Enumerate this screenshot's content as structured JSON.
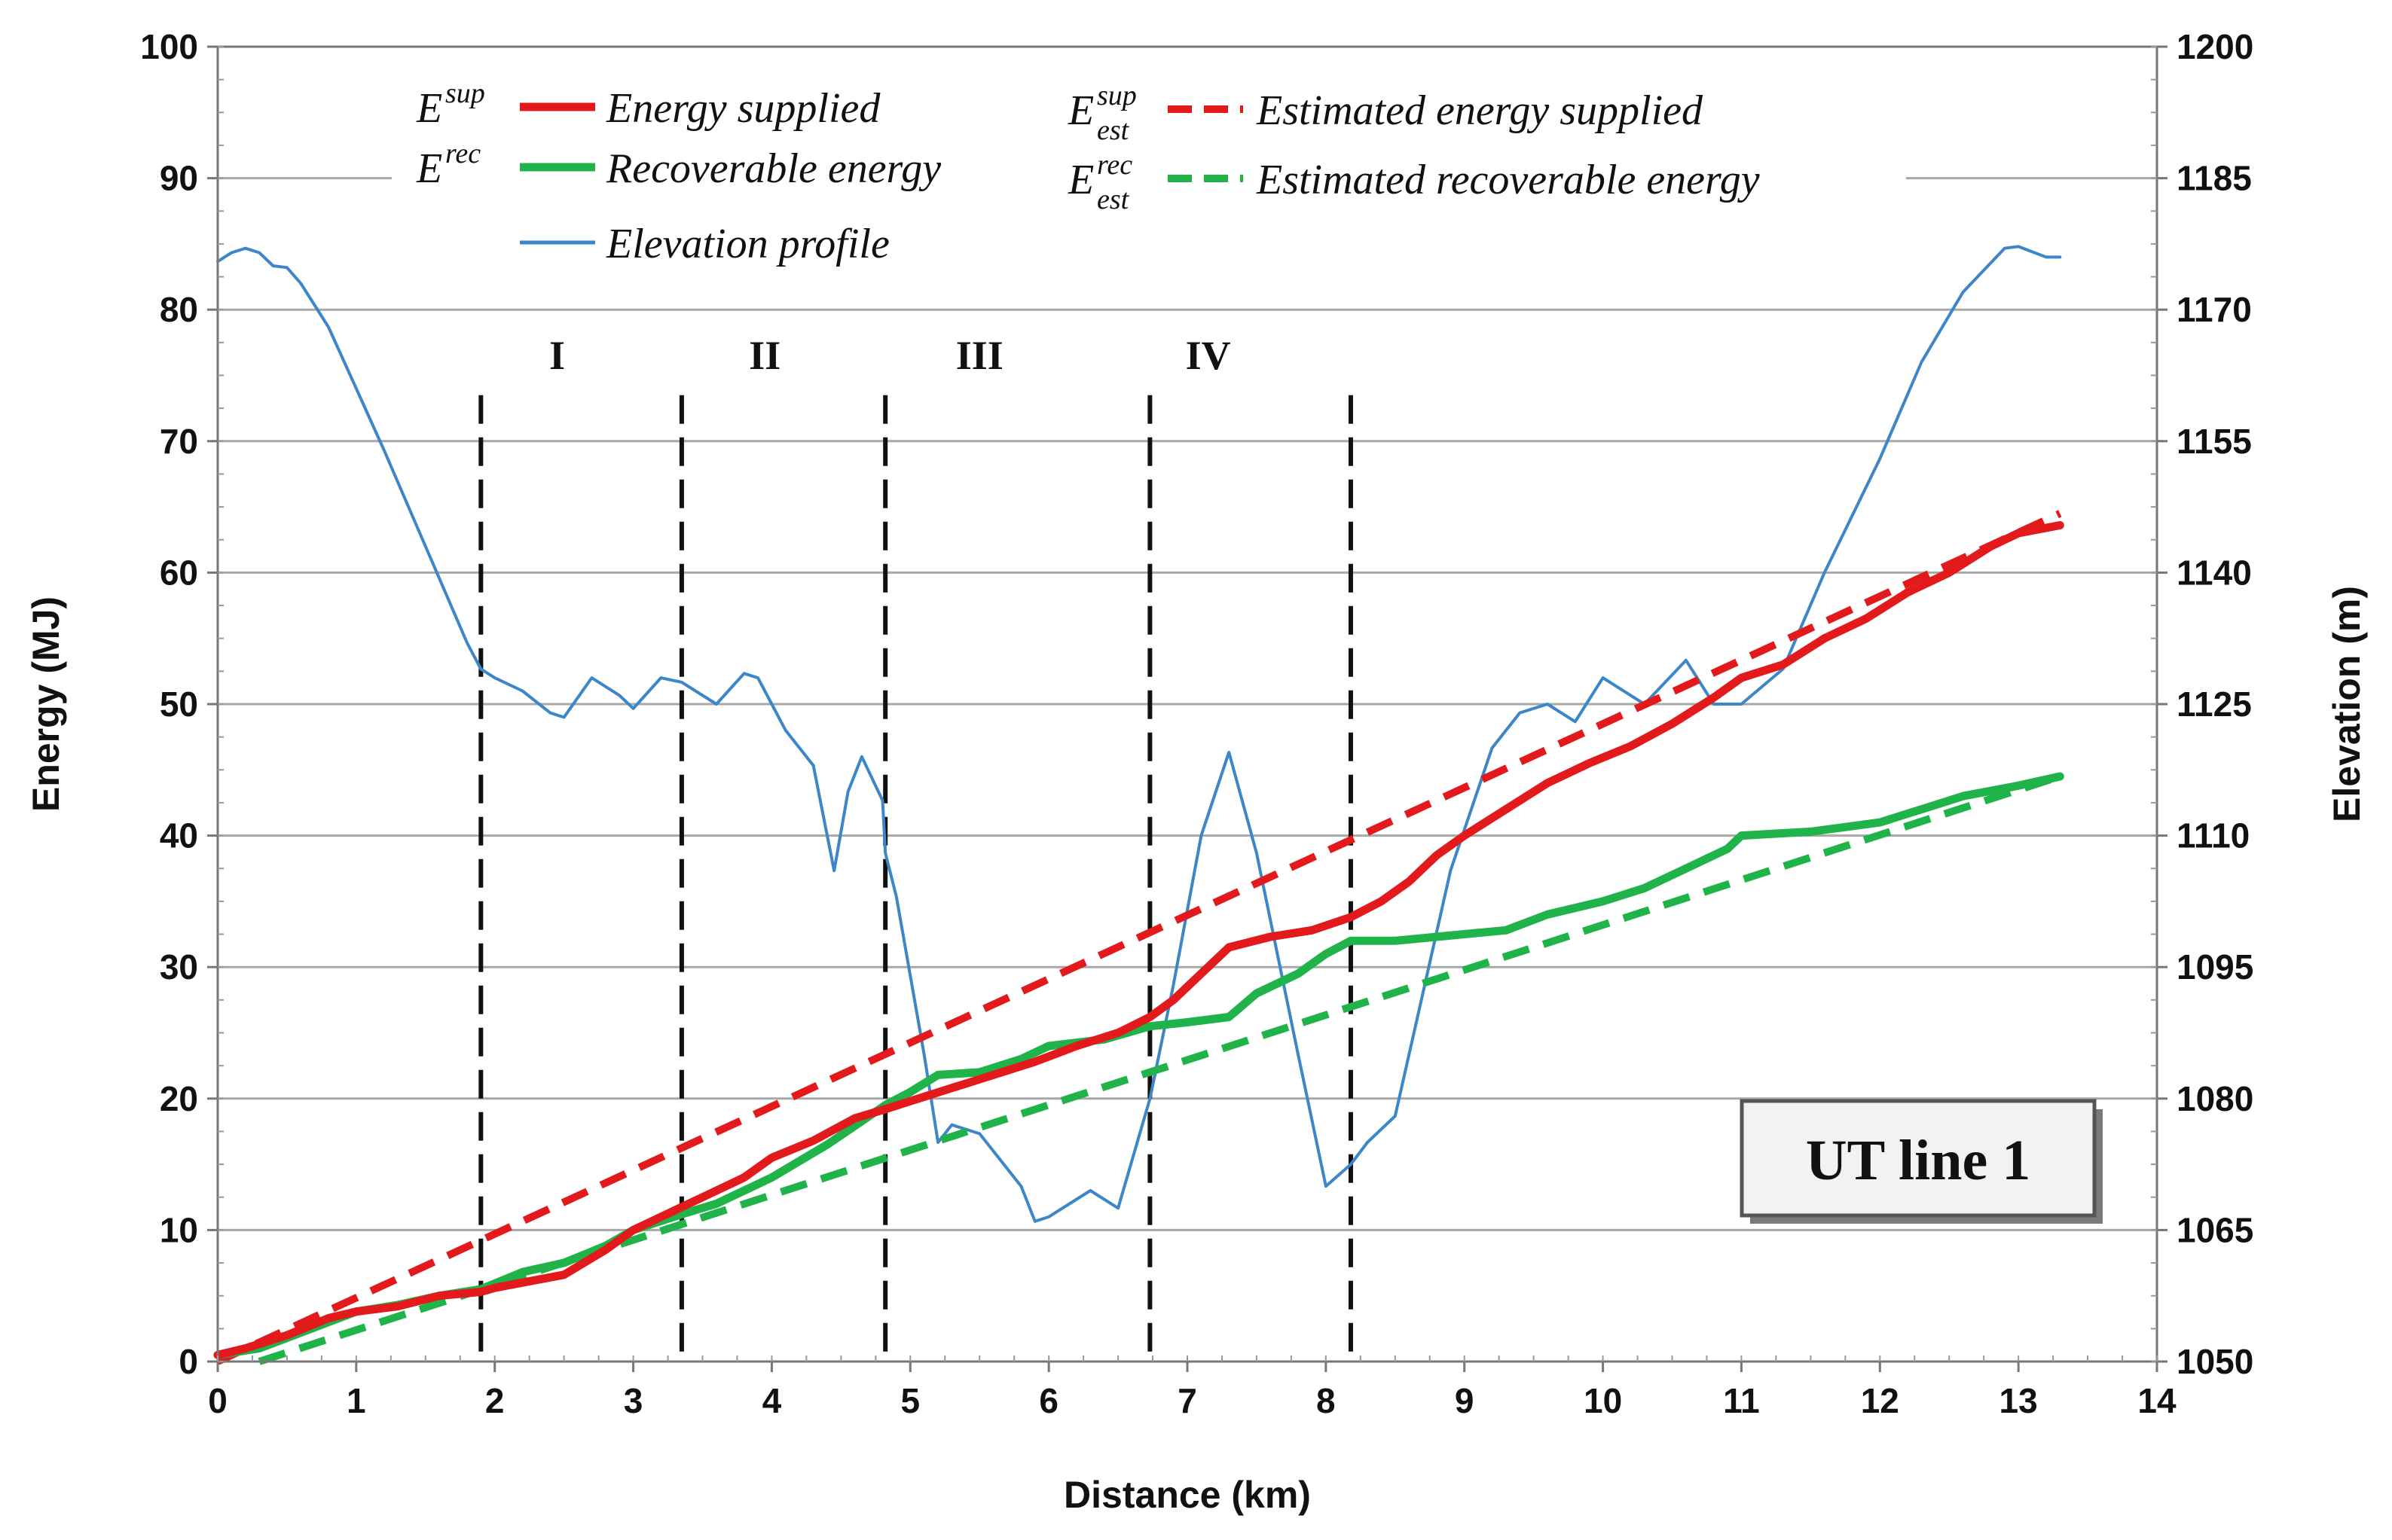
{
  "chart_data": {
    "type": "line",
    "badge": "UT line 1",
    "xlabel": "Distance (km)",
    "ylabel_left": "Energy (MJ)",
    "ylabel_right": "Elevation (m)",
    "xlim": [
      0,
      14
    ],
    "ylim_left": [
      0,
      100
    ],
    "ylim_right": [
      1050,
      1200
    ],
    "x_ticks": [
      0,
      1,
      2,
      3,
      4,
      5,
      6,
      7,
      8,
      9,
      10,
      11,
      12,
      13,
      14
    ],
    "y_ticks_left": [
      0,
      10,
      20,
      30,
      40,
      50,
      60,
      70,
      80,
      90,
      100
    ],
    "y_ticks_right": [
      1050,
      1065,
      1080,
      1095,
      1110,
      1125,
      1140,
      1155,
      1170,
      1185,
      1200
    ],
    "grid": "horizontal",
    "section_dividers_km": [
      1.9,
      3.35,
      4.82,
      6.73,
      8.18
    ],
    "sections": [
      {
        "label": "I",
        "x": 2.45
      },
      {
        "label": "II",
        "x": 3.95
      },
      {
        "label": "III",
        "x": 5.5
      },
      {
        "label": "IV",
        "x": 7.15
      }
    ],
    "legend": [
      {
        "symbol": "E",
        "sup": "sup",
        "sub": "",
        "label": "Energy supplied",
        "color": "#e31a1c",
        "style": "solid"
      },
      {
        "symbol": "E",
        "sup": "rec",
        "sub": "",
        "label": "Recoverable energy",
        "color": "#1fb349",
        "style": "solid"
      },
      {
        "symbol": "",
        "sup": "",
        "sub": "",
        "label": "Elevation profile",
        "color": "#3d86c8",
        "style": "solid"
      },
      {
        "symbol": "E",
        "sup": "sup",
        "sub": "est",
        "label": "Estimated energy supplied",
        "color": "#e31a1c",
        "style": "dashed"
      },
      {
        "symbol": "E",
        "sup": "rec",
        "sub": "est",
        "label": "Estimated recoverable energy",
        "color": "#1fb349",
        "style": "dashed"
      }
    ],
    "series": [
      {
        "name": "Energy supplied",
        "axis": "left",
        "color": "#e31a1c",
        "style": "solid",
        "x": [
          0,
          0.2,
          0.5,
          0.8,
          1.0,
          1.3,
          1.6,
          1.9,
          2.0,
          2.2,
          2.5,
          2.8,
          3.0,
          3.3,
          3.5,
          3.8,
          4.0,
          4.3,
          4.6,
          4.82,
          5.0,
          5.3,
          5.6,
          5.9,
          6.2,
          6.5,
          6.73,
          6.9,
          7.1,
          7.3,
          7.6,
          7.9,
          8.18,
          8.4,
          8.6,
          8.8,
          9.0,
          9.3,
          9.6,
          9.9,
          10.2,
          10.5,
          10.8,
          11.0,
          11.3,
          11.6,
          11.9,
          12.2,
          12.5,
          12.8,
          13.0,
          13.3
        ],
        "y": [
          0.5,
          1.0,
          2.0,
          3.3,
          3.8,
          4.2,
          5.0,
          5.3,
          5.6,
          6.0,
          6.6,
          8.5,
          10.0,
          11.5,
          12.5,
          14.0,
          15.5,
          16.8,
          18.5,
          19.2,
          19.8,
          20.8,
          21.8,
          22.8,
          24.0,
          25.0,
          26.2,
          27.5,
          29.5,
          31.5,
          32.3,
          32.8,
          33.8,
          35.0,
          36.5,
          38.5,
          40.0,
          42.0,
          44.0,
          45.5,
          46.8,
          48.5,
          50.5,
          52.0,
          53.0,
          55.0,
          56.5,
          58.5,
          60.0,
          62.0,
          63.0,
          63.6
        ]
      },
      {
        "name": "Recoverable energy",
        "axis": "left",
        "color": "#1fb349",
        "style": "solid",
        "x": [
          0,
          0.3,
          0.5,
          0.8,
          1.0,
          1.3,
          1.6,
          1.9,
          2.2,
          2.5,
          2.8,
          3.0,
          3.35,
          3.6,
          4.0,
          4.4,
          4.82,
          5.0,
          5.2,
          5.5,
          5.8,
          6.0,
          6.4,
          6.73,
          7.0,
          7.3,
          7.5,
          7.8,
          8.0,
          8.18,
          8.5,
          9.0,
          9.3,
          9.6,
          10.0,
          10.3,
          10.6,
          10.9,
          11.0,
          11.5,
          12.0,
          12.3,
          12.6,
          13.0,
          13.3
        ],
        "y": [
          0.5,
          1.0,
          1.8,
          3.0,
          3.8,
          4.3,
          5.0,
          5.5,
          6.8,
          7.5,
          8.8,
          10.0,
          11.2,
          12.0,
          14.0,
          16.5,
          19.5,
          20.5,
          21.8,
          22.0,
          23.0,
          24.0,
          24.5,
          25.5,
          25.8,
          26.2,
          28.0,
          29.5,
          31.0,
          32.0,
          32.0,
          32.5,
          32.8,
          34.0,
          35.0,
          36.0,
          37.5,
          39.0,
          40.0,
          40.3,
          41.0,
          42.0,
          43.0,
          43.8,
          44.5
        ]
      },
      {
        "name": "Estimated energy supplied",
        "axis": "left",
        "color": "#e31a1c",
        "style": "dashed",
        "x": [
          0,
          13.3
        ],
        "y": [
          0,
          64.5
        ]
      },
      {
        "name": "Estimated recoverable energy",
        "axis": "left",
        "color": "#1fb349",
        "style": "dashed",
        "x": [
          0.3,
          13.3
        ],
        "y": [
          0,
          44.5
        ]
      },
      {
        "name": "Elevation profile",
        "axis": "right",
        "color": "#3d86c8",
        "style": "solid",
        "x": [
          0,
          0.1,
          0.2,
          0.3,
          0.4,
          0.5,
          0.6,
          0.8,
          1.0,
          1.2,
          1.5,
          1.8,
          1.9,
          2.0,
          2.2,
          2.4,
          2.5,
          2.7,
          2.9,
          3.0,
          3.2,
          3.35,
          3.6,
          3.8,
          3.9,
          4.1,
          4.3,
          4.45,
          4.55,
          4.65,
          4.8,
          4.82,
          4.9,
          5.1,
          5.2,
          5.3,
          5.5,
          5.8,
          5.9,
          6.0,
          6.3,
          6.5,
          6.73,
          6.9,
          7.1,
          7.3,
          7.5,
          7.8,
          8.0,
          8.18,
          8.3,
          8.5,
          8.7,
          8.9,
          9.2,
          9.4,
          9.6,
          9.8,
          10.0,
          10.3,
          10.6,
          10.8,
          11.0,
          11.3,
          11.6,
          12.0,
          12.3,
          12.6,
          12.9,
          13.0,
          13.2,
          13.3
        ],
        "y": [
          1175.5,
          1176.5,
          1177,
          1176.5,
          1175,
          1174.8,
          1173,
          1168,
          1161,
          1154,
          1143,
          1132,
          1129,
          1128,
          1126.5,
          1124,
          1123.5,
          1128,
          1126,
          1124.5,
          1128,
          1127.5,
          1125,
          1128.5,
          1128,
          1122,
          1118,
          1106,
          1115,
          1119,
          1114,
          1108,
          1103,
          1085,
          1075,
          1077,
          1076,
          1070,
          1066,
          1066.5,
          1069.5,
          1067.5,
          1080,
          1093,
          1110,
          1119.5,
          1108,
          1085,
          1070,
          1072.5,
          1075,
          1078,
          1092,
          1106,
          1120,
          1124,
          1125,
          1123,
          1128,
          1125,
          1130,
          1125,
          1125,
          1129,
          1140,
          1153,
          1164,
          1172,
          1177,
          1177.2,
          1176,
          1176
        ]
      }
    ]
  }
}
